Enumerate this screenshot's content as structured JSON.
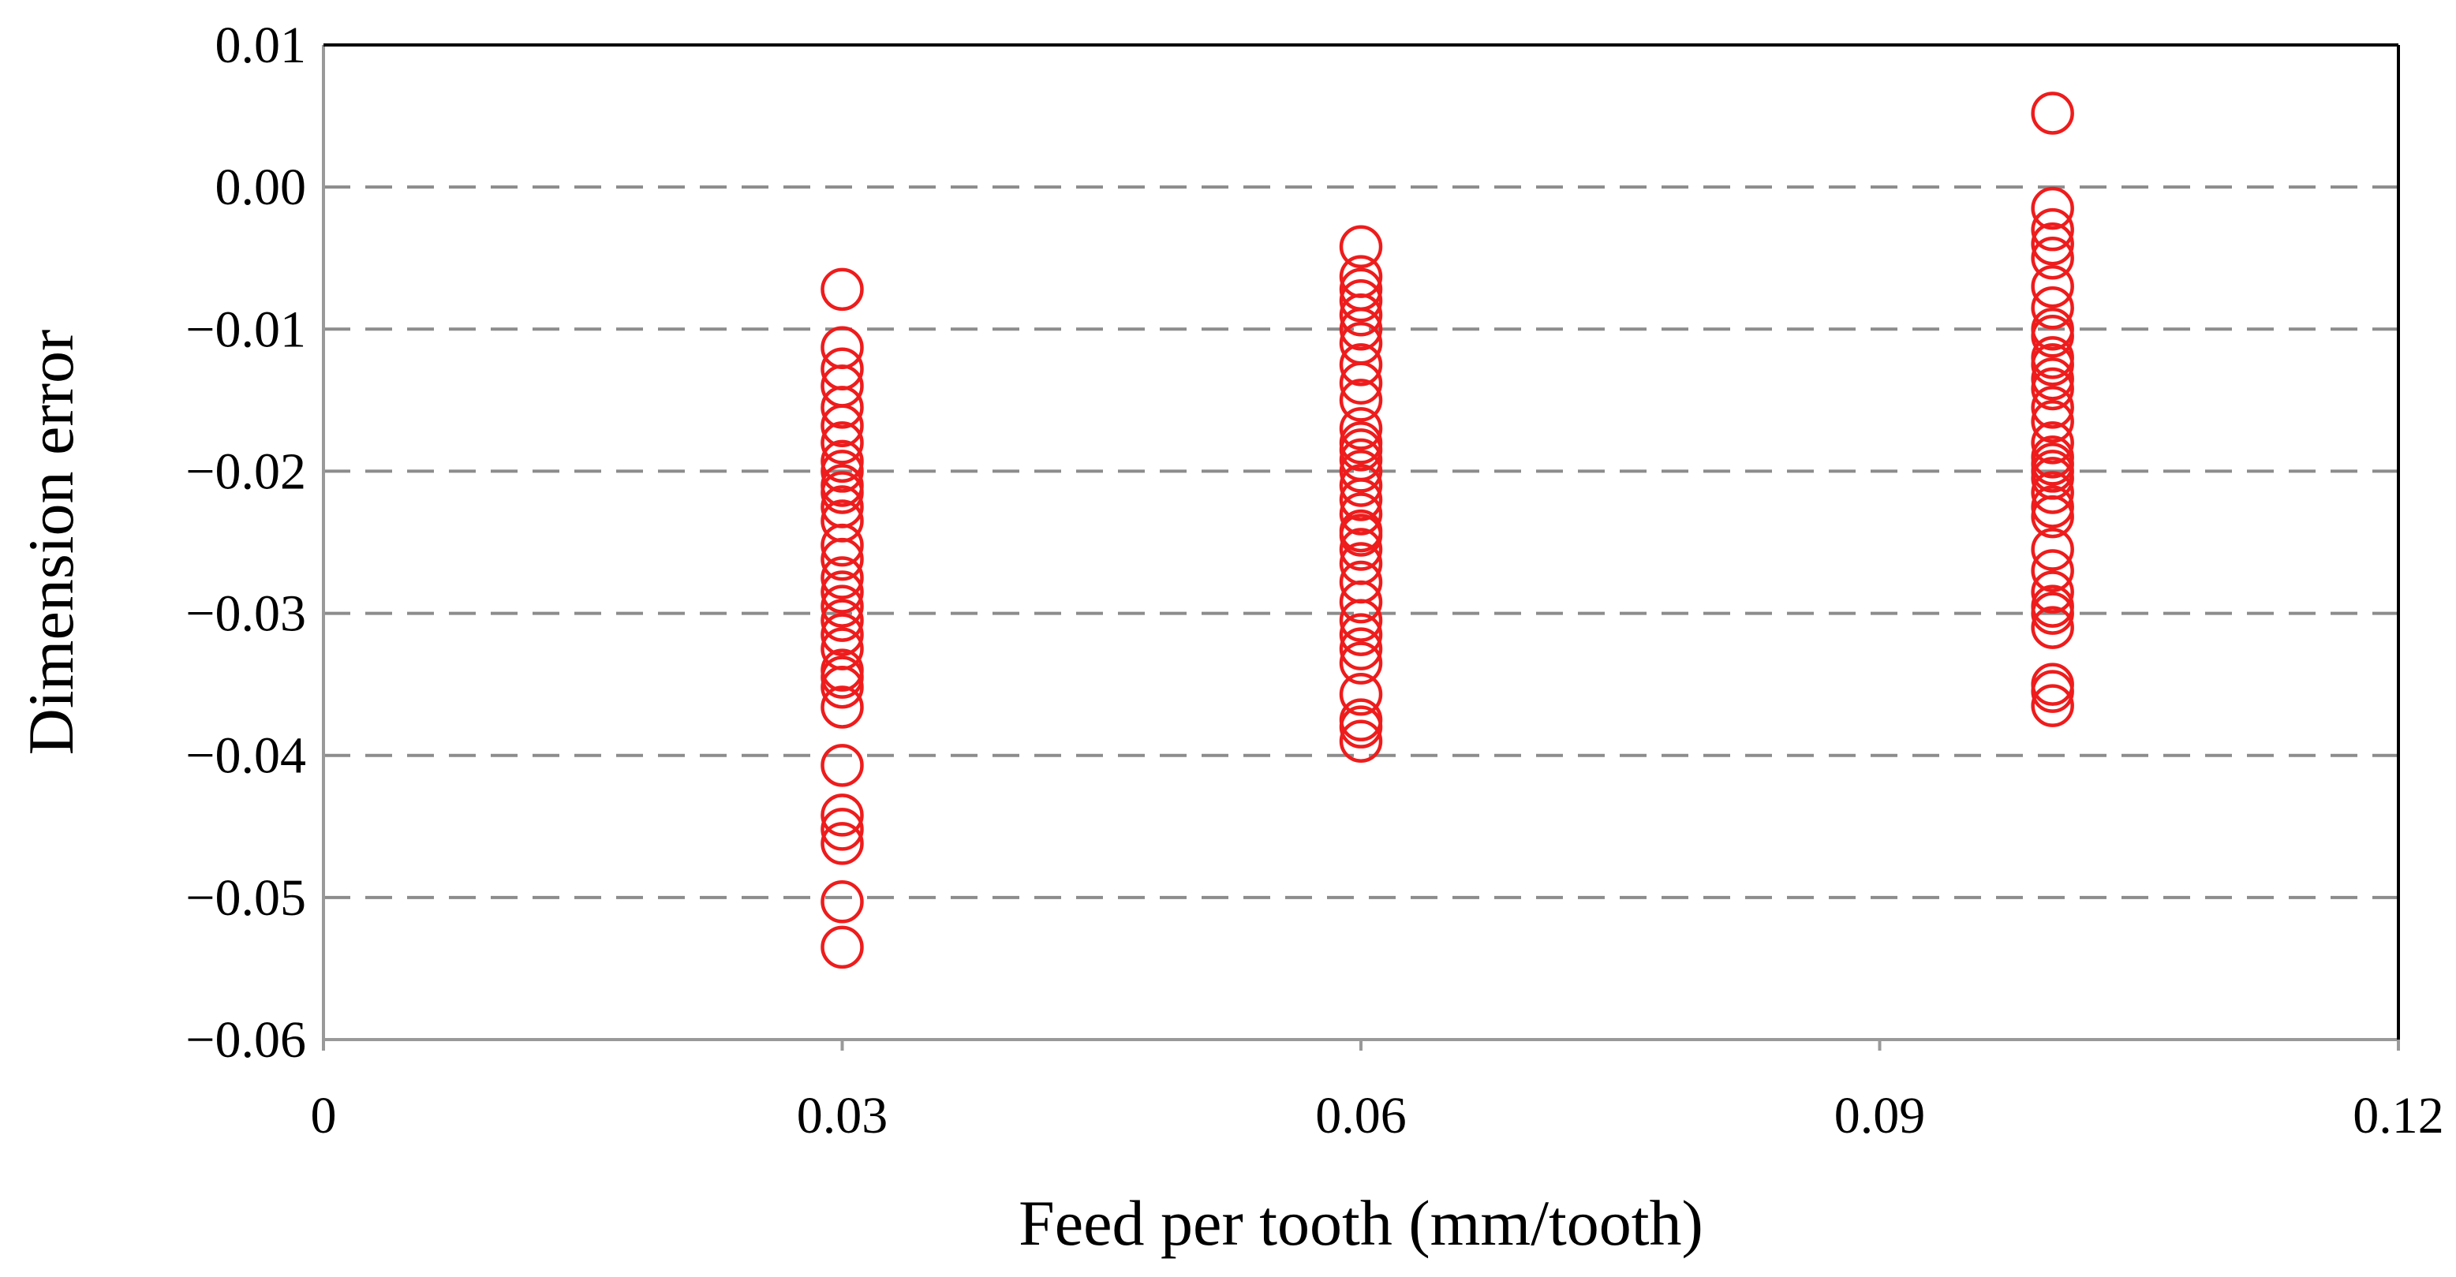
{
  "chart_data": {
    "type": "scatter",
    "title": "",
    "xlabel": "Feed per tooth (mm/tooth)",
    "ylabel": "Dimension error",
    "xlim": [
      0,
      0.12
    ],
    "ylim": [
      -0.06,
      0.01
    ],
    "x_ticks": [
      0,
      0.03,
      0.06,
      0.09,
      0.12
    ],
    "x_tick_labels": [
      "0",
      "0.03",
      "0.06",
      "0.09",
      "0.12"
    ],
    "y_ticks": [
      0.01,
      0.0,
      -0.01,
      -0.02,
      -0.03,
      -0.04,
      -0.05,
      -0.06
    ],
    "y_tick_labels": [
      "0.01",
      "0.00",
      "−0.01",
      "−0.02",
      "−0.03",
      "−0.04",
      "−0.05",
      "−0.06"
    ],
    "grid": "horizontal dashed",
    "marker": "open-circle",
    "colors": {
      "marker": "#ee1c1c",
      "grid": "#8c8c8c",
      "axis": "#000000"
    },
    "series": [
      {
        "name": "Dimension error",
        "x": [
          0.03,
          0.03,
          0.03,
          0.03,
          0.03,
          0.03,
          0.03,
          0.03,
          0.03,
          0.03,
          0.03,
          0.03,
          0.03,
          0.03,
          0.03,
          0.03,
          0.03,
          0.03,
          0.03,
          0.03,
          0.03,
          0.03,
          0.03,
          0.03,
          0.03,
          0.03,
          0.03,
          0.03,
          0.03,
          0.03,
          0.03,
          0.06,
          0.06,
          0.06,
          0.06,
          0.06,
          0.06,
          0.06,
          0.06,
          0.06,
          0.06,
          0.06,
          0.06,
          0.06,
          0.06,
          0.06,
          0.06,
          0.06,
          0.06,
          0.06,
          0.06,
          0.06,
          0.06,
          0.06,
          0.06,
          0.06,
          0.06,
          0.06,
          0.06,
          0.06,
          0.06,
          0.06,
          0.06,
          0.1,
          0.1,
          0.1,
          0.1,
          0.1,
          0.1,
          0.1,
          0.1,
          0.1,
          0.1,
          0.1,
          0.1,
          0.1,
          0.1,
          0.1,
          0.1,
          0.1,
          0.1,
          0.1,
          0.1,
          0.1,
          0.1,
          0.1,
          0.1,
          0.1,
          0.1,
          0.1,
          0.1,
          0.1,
          0.1,
          0.1,
          0.1
        ],
        "y": [
          -0.0072,
          -0.0113,
          -0.0128,
          -0.014,
          -0.0155,
          -0.0168,
          -0.018,
          -0.0193,
          -0.02,
          -0.021,
          -0.0225,
          -0.0235,
          -0.0252,
          -0.0262,
          -0.0275,
          -0.0285,
          -0.0295,
          -0.0305,
          -0.0315,
          -0.0325,
          -0.034,
          -0.0345,
          -0.0352,
          -0.0366,
          -0.0407,
          -0.0442,
          -0.0452,
          -0.0462,
          -0.0503,
          -0.0535,
          -0.0215,
          -0.0042,
          -0.0063,
          -0.0072,
          -0.008,
          -0.009,
          -0.01,
          -0.011,
          -0.0125,
          -0.0138,
          -0.015,
          -0.017,
          -0.018,
          -0.0192,
          -0.02,
          -0.021,
          -0.022,
          -0.023,
          -0.0242,
          -0.0255,
          -0.0265,
          -0.0278,
          -0.0292,
          -0.0305,
          -0.0315,
          -0.0325,
          -0.0335,
          -0.0357,
          -0.0375,
          -0.038,
          -0.039,
          -0.0185,
          -0.0245,
          0.0052,
          -0.0015,
          -0.003,
          -0.005,
          -0.007,
          -0.0085,
          -0.01,
          -0.0105,
          -0.012,
          -0.0135,
          -0.0142,
          -0.0155,
          -0.0165,
          -0.018,
          -0.019,
          -0.0195,
          -0.02,
          -0.0205,
          -0.0215,
          -0.0225,
          -0.0232,
          -0.0255,
          -0.027,
          -0.0285,
          -0.0295,
          -0.03,
          -0.031,
          -0.035,
          -0.0355,
          -0.0365,
          -0.004,
          -0.0125
        ]
      }
    ]
  }
}
